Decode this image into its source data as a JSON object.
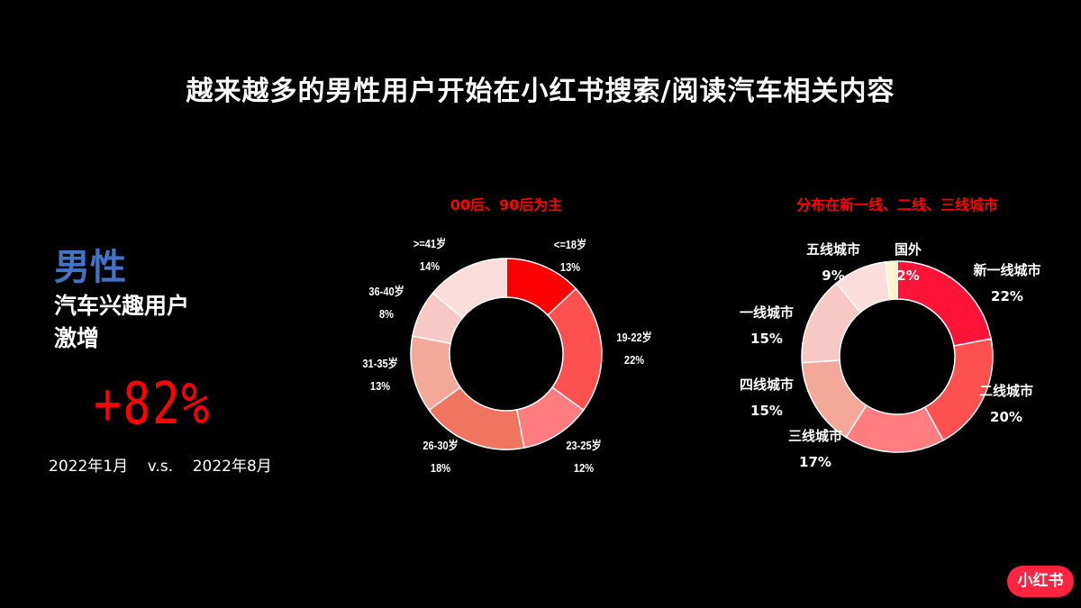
{
  "title": "越来越多的男性用户开始在小红书搜索/阅读汽车相关内容",
  "highlight": {
    "gender": "男性",
    "line2": "汽车兴趣用户",
    "line3": "激增",
    "growth": "+82%",
    "period": "2022年1月    v.s.    2022年8月"
  },
  "logo": "小红书",
  "colors": {
    "accent": "#ff0000",
    "gender": "#4472c4",
    "logo": "#ff2442"
  },
  "chart_data": [
    {
      "type": "pie",
      "donut": true,
      "title": "00后、90后为主",
      "categories": [
        "<=18岁",
        "19-22岁",
        "23-25岁",
        "26-30岁",
        "31-35岁",
        "36-40岁",
        ">=41岁"
      ],
      "values": [
        13,
        22,
        12,
        18,
        13,
        8,
        14
      ],
      "labels": [
        "13%",
        "22%",
        "12%",
        "18%",
        "13%",
        "8%",
        "14%"
      ],
      "colors": [
        "#ff0000",
        "#ff5050",
        "#ff7c80",
        "#f07560",
        "#f4a89a",
        "#f8c9c4",
        "#fadcda"
      ]
    },
    {
      "type": "pie",
      "donut": true,
      "title": "分布在新一线、二线、三线城市",
      "categories": [
        "新一线城市",
        "二线城市",
        "三线城市",
        "四线城市",
        "一线城市",
        "五线城市",
        "国外"
      ],
      "values": [
        22,
        20,
        17,
        15,
        15,
        9,
        2
      ],
      "labels": [
        "22%",
        "20%",
        "17%",
        "15%",
        "15%",
        "9%",
        "2%"
      ],
      "colors": [
        "#ff1439",
        "#ff5050",
        "#ff7c80",
        "#f4a89a",
        "#f8c9c4",
        "#fadcda",
        "#fff2cc"
      ]
    }
  ]
}
